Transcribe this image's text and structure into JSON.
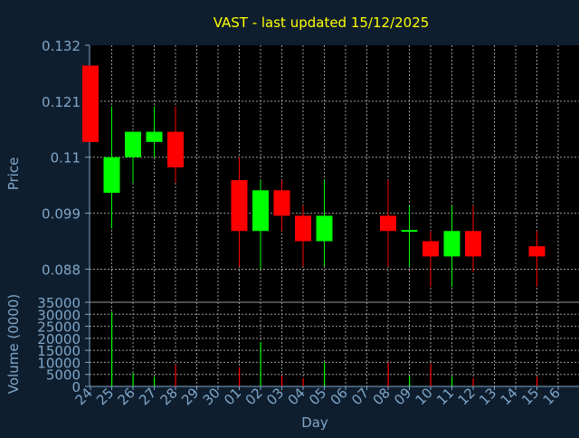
{
  "colors": {
    "background": "#0f1e2e",
    "plot_background": "#000000",
    "title": "#ffff00",
    "axis_text": "#7fa6c9",
    "grid": "#9a9a9a",
    "up": "#00ff00",
    "down": "#ff0000"
  },
  "chart_data": [
    {
      "type": "candlestick",
      "title": "VAST - last updated 15/12/2025",
      "xlabel": "",
      "ylabel": "Price",
      "ylim": [
        0.0815,
        0.132
      ],
      "y_ticks": [
        "0.132",
        "0.121",
        "0.11",
        "0.099",
        "0.088"
      ],
      "grid": true,
      "categories": [
        "24",
        "25",
        "26",
        "27",
        "28",
        "29",
        "30",
        "01",
        "02",
        "03",
        "04",
        "05",
        "06",
        "07",
        "08",
        "09",
        "10",
        "11",
        "12",
        "13",
        "14",
        "15",
        "16"
      ],
      "series": [
        {
          "x": "24",
          "open": 0.128,
          "high": 0.128,
          "low": 0.113,
          "close": 0.113
        },
        {
          "x": "25",
          "open": 0.103,
          "high": 0.12,
          "low": 0.096,
          "close": 0.11
        },
        {
          "x": "26",
          "open": 0.11,
          "high": 0.115,
          "low": 0.105,
          "close": 0.115
        },
        {
          "x": "27",
          "open": 0.113,
          "high": 0.12,
          "low": 0.11,
          "close": 0.115
        },
        {
          "x": "28",
          "open": 0.115,
          "high": 0.12,
          "low": 0.105,
          "close": 0.108
        },
        {
          "x": "01",
          "open": 0.1055,
          "high": 0.11,
          "low": 0.0885,
          "close": 0.0955
        },
        {
          "x": "02",
          "open": 0.0955,
          "high": 0.1055,
          "low": 0.088,
          "close": 0.1035
        },
        {
          "x": "03",
          "open": 0.1035,
          "high": 0.1055,
          "low": 0.0955,
          "close": 0.0985
        },
        {
          "x": "04",
          "open": 0.0985,
          "high": 0.1005,
          "low": 0.0885,
          "close": 0.0935
        },
        {
          "x": "05",
          "open": 0.0935,
          "high": 0.1055,
          "low": 0.0885,
          "close": 0.0985
        },
        {
          "x": "08",
          "open": 0.0985,
          "high": 0.1055,
          "low": 0.0885,
          "close": 0.0955
        },
        {
          "x": "09",
          "open": 0.0955,
          "high": 0.1005,
          "low": 0.0885,
          "close": 0.0957
        },
        {
          "x": "10",
          "open": 0.0935,
          "high": 0.0955,
          "low": 0.0845,
          "close": 0.0905
        },
        {
          "x": "11",
          "open": 0.0905,
          "high": 0.1005,
          "low": 0.0845,
          "close": 0.0955
        },
        {
          "x": "12",
          "open": 0.0955,
          "high": 0.1005,
          "low": 0.0875,
          "close": 0.0905
        },
        {
          "x": "15",
          "open": 0.0925,
          "high": 0.0955,
          "low": 0.0845,
          "close": 0.0905
        }
      ]
    },
    {
      "type": "bar",
      "xlabel": "Day",
      "ylabel": "Volume (0000)",
      "ylim": [
        0,
        35000
      ],
      "y_ticks": [
        "35000",
        "30000",
        "25000",
        "20000",
        "15000",
        "10000",
        "5000",
        "0"
      ],
      "grid": true,
      "categories": [
        "24",
        "25",
        "26",
        "27",
        "28",
        "29",
        "30",
        "01",
        "02",
        "03",
        "04",
        "05",
        "06",
        "07",
        "08",
        "09",
        "10",
        "11",
        "12",
        "13",
        "14",
        "15",
        "16"
      ],
      "values": [
        null,
        31000,
        5500,
        4000,
        9000,
        null,
        null,
        8000,
        18500,
        4500,
        3500,
        10000,
        null,
        null,
        10000,
        4500,
        9500,
        4000,
        3500,
        null,
        null,
        4000,
        null
      ],
      "directions": [
        null,
        "up",
        "up",
        "up",
        "down",
        null,
        null,
        "down",
        "up",
        "down",
        "down",
        "up",
        null,
        null,
        "down",
        "up",
        "down",
        "up",
        "down",
        null,
        null,
        "down",
        null
      ]
    }
  ]
}
